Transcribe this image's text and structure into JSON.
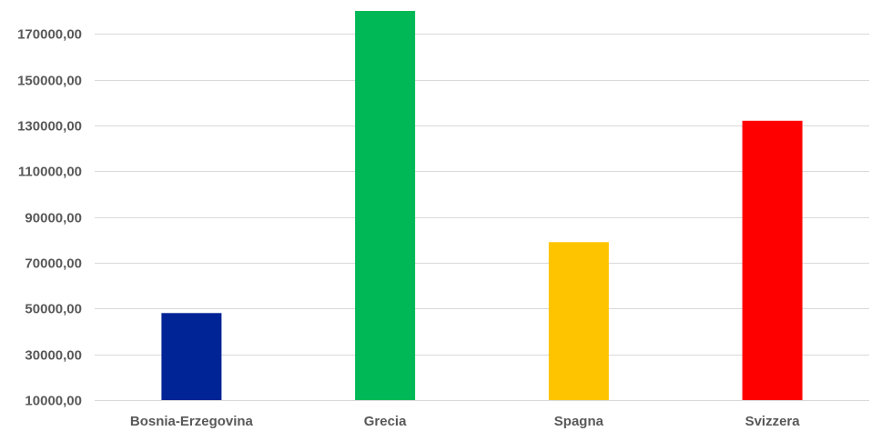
{
  "chart_data": {
    "type": "bar",
    "title": "",
    "xlabel": "",
    "ylabel": "",
    "categories": [
      "Bosnia-Erzegovina",
      "Grecia",
      "Spagna",
      "Svizzera"
    ],
    "values": [
      48000,
      180000,
      79000,
      132000
    ],
    "colors": [
      "#002395",
      "#00B956",
      "#FFC400",
      "#FF0000"
    ],
    "ylim": [
      10000,
      180000
    ],
    "yticks": [
      10000,
      30000,
      50000,
      70000,
      90000,
      110000,
      130000,
      150000,
      170000
    ],
    "ytick_labels": [
      "10000,00",
      "30000,00",
      "50000,00",
      "70000,00",
      "90000,00",
      "110000,00",
      "130000,00",
      "150000,00",
      "170000,00"
    ],
    "grid": true,
    "legend": "none"
  }
}
